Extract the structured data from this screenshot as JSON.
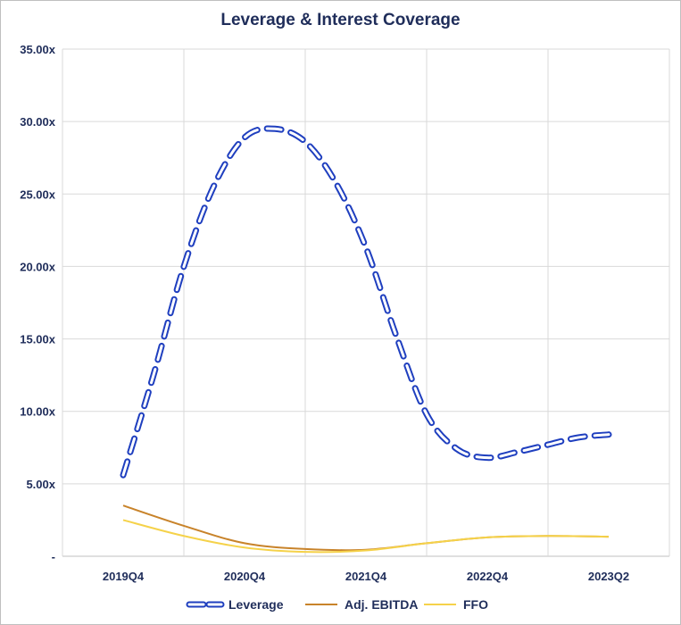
{
  "chart_data": {
    "type": "line",
    "title": "Leverage & Interest Coverage",
    "xlabel": "",
    "ylabel": "",
    "categories": [
      "2019Q4",
      "2020Q4",
      "2021Q4",
      "2022Q4",
      "2023Q2"
    ],
    "ylim": [
      0,
      35
    ],
    "yticks": [
      "-",
      "5.00x",
      "10.00x",
      "15.00x",
      "20.00x",
      "25.00x",
      "30.00x",
      "35.00x"
    ],
    "grid": true,
    "legend_position": "bottom",
    "series": [
      {
        "name": "Leverage",
        "style": "dashed",
        "color": "#1f3fbf",
        "x": [
          0,
          0.25,
          0.5,
          0.75,
          1,
          1.25,
          1.5,
          1.75,
          2,
          2.25,
          2.5,
          2.75,
          3,
          3.25,
          3.5,
          3.75,
          4
        ],
        "values": [
          5.6,
          12.5,
          20.0,
          25.6,
          28.9,
          29.5,
          28.6,
          25.8,
          21.3,
          15.2,
          9.8,
          7.4,
          6.8,
          7.2,
          7.7,
          8.2,
          8.4
        ]
      },
      {
        "name": "Adj. EBITDA",
        "style": "solid",
        "color": "#c8832a",
        "x": [
          0,
          0.5,
          1,
          1.5,
          2,
          2.5,
          3,
          3.5,
          4
        ],
        "values": [
          3.5,
          2.1,
          0.9,
          0.5,
          0.45,
          0.9,
          1.3,
          1.4,
          1.35
        ]
      },
      {
        "name": "FFO",
        "style": "solid",
        "color": "#f5d24a",
        "x": [
          0,
          0.5,
          1,
          1.5,
          2,
          2.5,
          3,
          3.5,
          4
        ],
        "values": [
          2.5,
          1.4,
          0.6,
          0.3,
          0.4,
          0.9,
          1.3,
          1.4,
          1.35
        ]
      }
    ]
  }
}
